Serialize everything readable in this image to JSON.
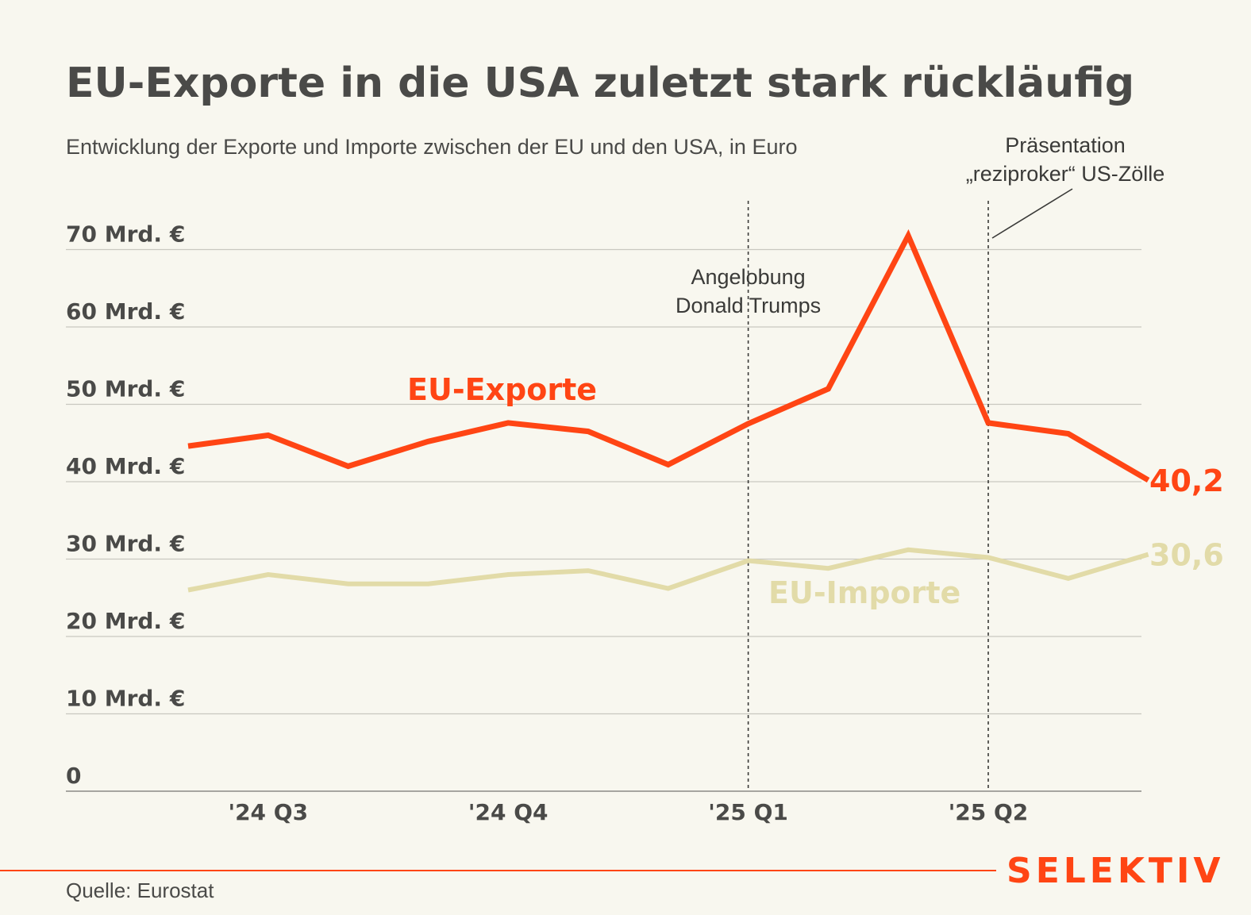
{
  "chart_data": {
    "type": "line",
    "title": "EU-Exporte in die USA zuletzt stark rückläufig",
    "subtitle": "Entwicklung der Exporte und Importe zwischen der EU und den USA, in Euro",
    "xlabel": "",
    "ylabel": "",
    "ylim": [
      0,
      70
    ],
    "yticks": [
      {
        "value": 0,
        "label": "0"
      },
      {
        "value": 10,
        "label": "10 Mrd. €"
      },
      {
        "value": 20,
        "label": "20 Mrd. €"
      },
      {
        "value": 30,
        "label": "30 Mrd. €"
      },
      {
        "value": 40,
        "label": "40 Mrd. €"
      },
      {
        "value": 50,
        "label": "50 Mrd. €"
      },
      {
        "value": 60,
        "label": "60 Mrd. €"
      },
      {
        "value": 70,
        "label": "70 Mrd. €"
      }
    ],
    "x_months": [
      "2024-06",
      "2024-07",
      "2024-08",
      "2024-09",
      "2024-10",
      "2024-11",
      "2024-12",
      "2025-01",
      "2025-02",
      "2025-03",
      "2025-04",
      "2025-05",
      "2025-06"
    ],
    "xticks": [
      {
        "index": 1,
        "label": "'24 Q3"
      },
      {
        "index": 4,
        "label": "'24 Q4"
      },
      {
        "index": 7,
        "label": "'25 Q1"
      },
      {
        "index": 10,
        "label": "'25 Q2"
      }
    ],
    "series": [
      {
        "name": "EU-Exporte",
        "color": "#ff4514",
        "values": [
          44.6,
          46.0,
          42.0,
          45.2,
          47.6,
          46.5,
          42.2,
          47.5,
          52.0,
          71.8,
          47.6,
          46.2,
          40.2
        ],
        "end_label": "40,2"
      },
      {
        "name": "EU-Importe",
        "color": "#e2dba8",
        "values": [
          26.0,
          28.0,
          26.8,
          26.8,
          28.0,
          28.5,
          26.2,
          29.8,
          28.8,
          31.2,
          30.2,
          27.5,
          30.6
        ],
        "end_label": "30,6"
      }
    ],
    "annotations": [
      {
        "index": 7,
        "lines": [
          "Angelobung",
          "Donald Trumps"
        ]
      },
      {
        "index": 10,
        "lines": [
          "Präsentation",
          "„reziproker“ US-Zölle"
        ]
      }
    ],
    "grid": true
  },
  "footer": {
    "source": "Quelle: Eurostat",
    "brand": "SELEKTIV",
    "brand_color": "#ff4514"
  }
}
